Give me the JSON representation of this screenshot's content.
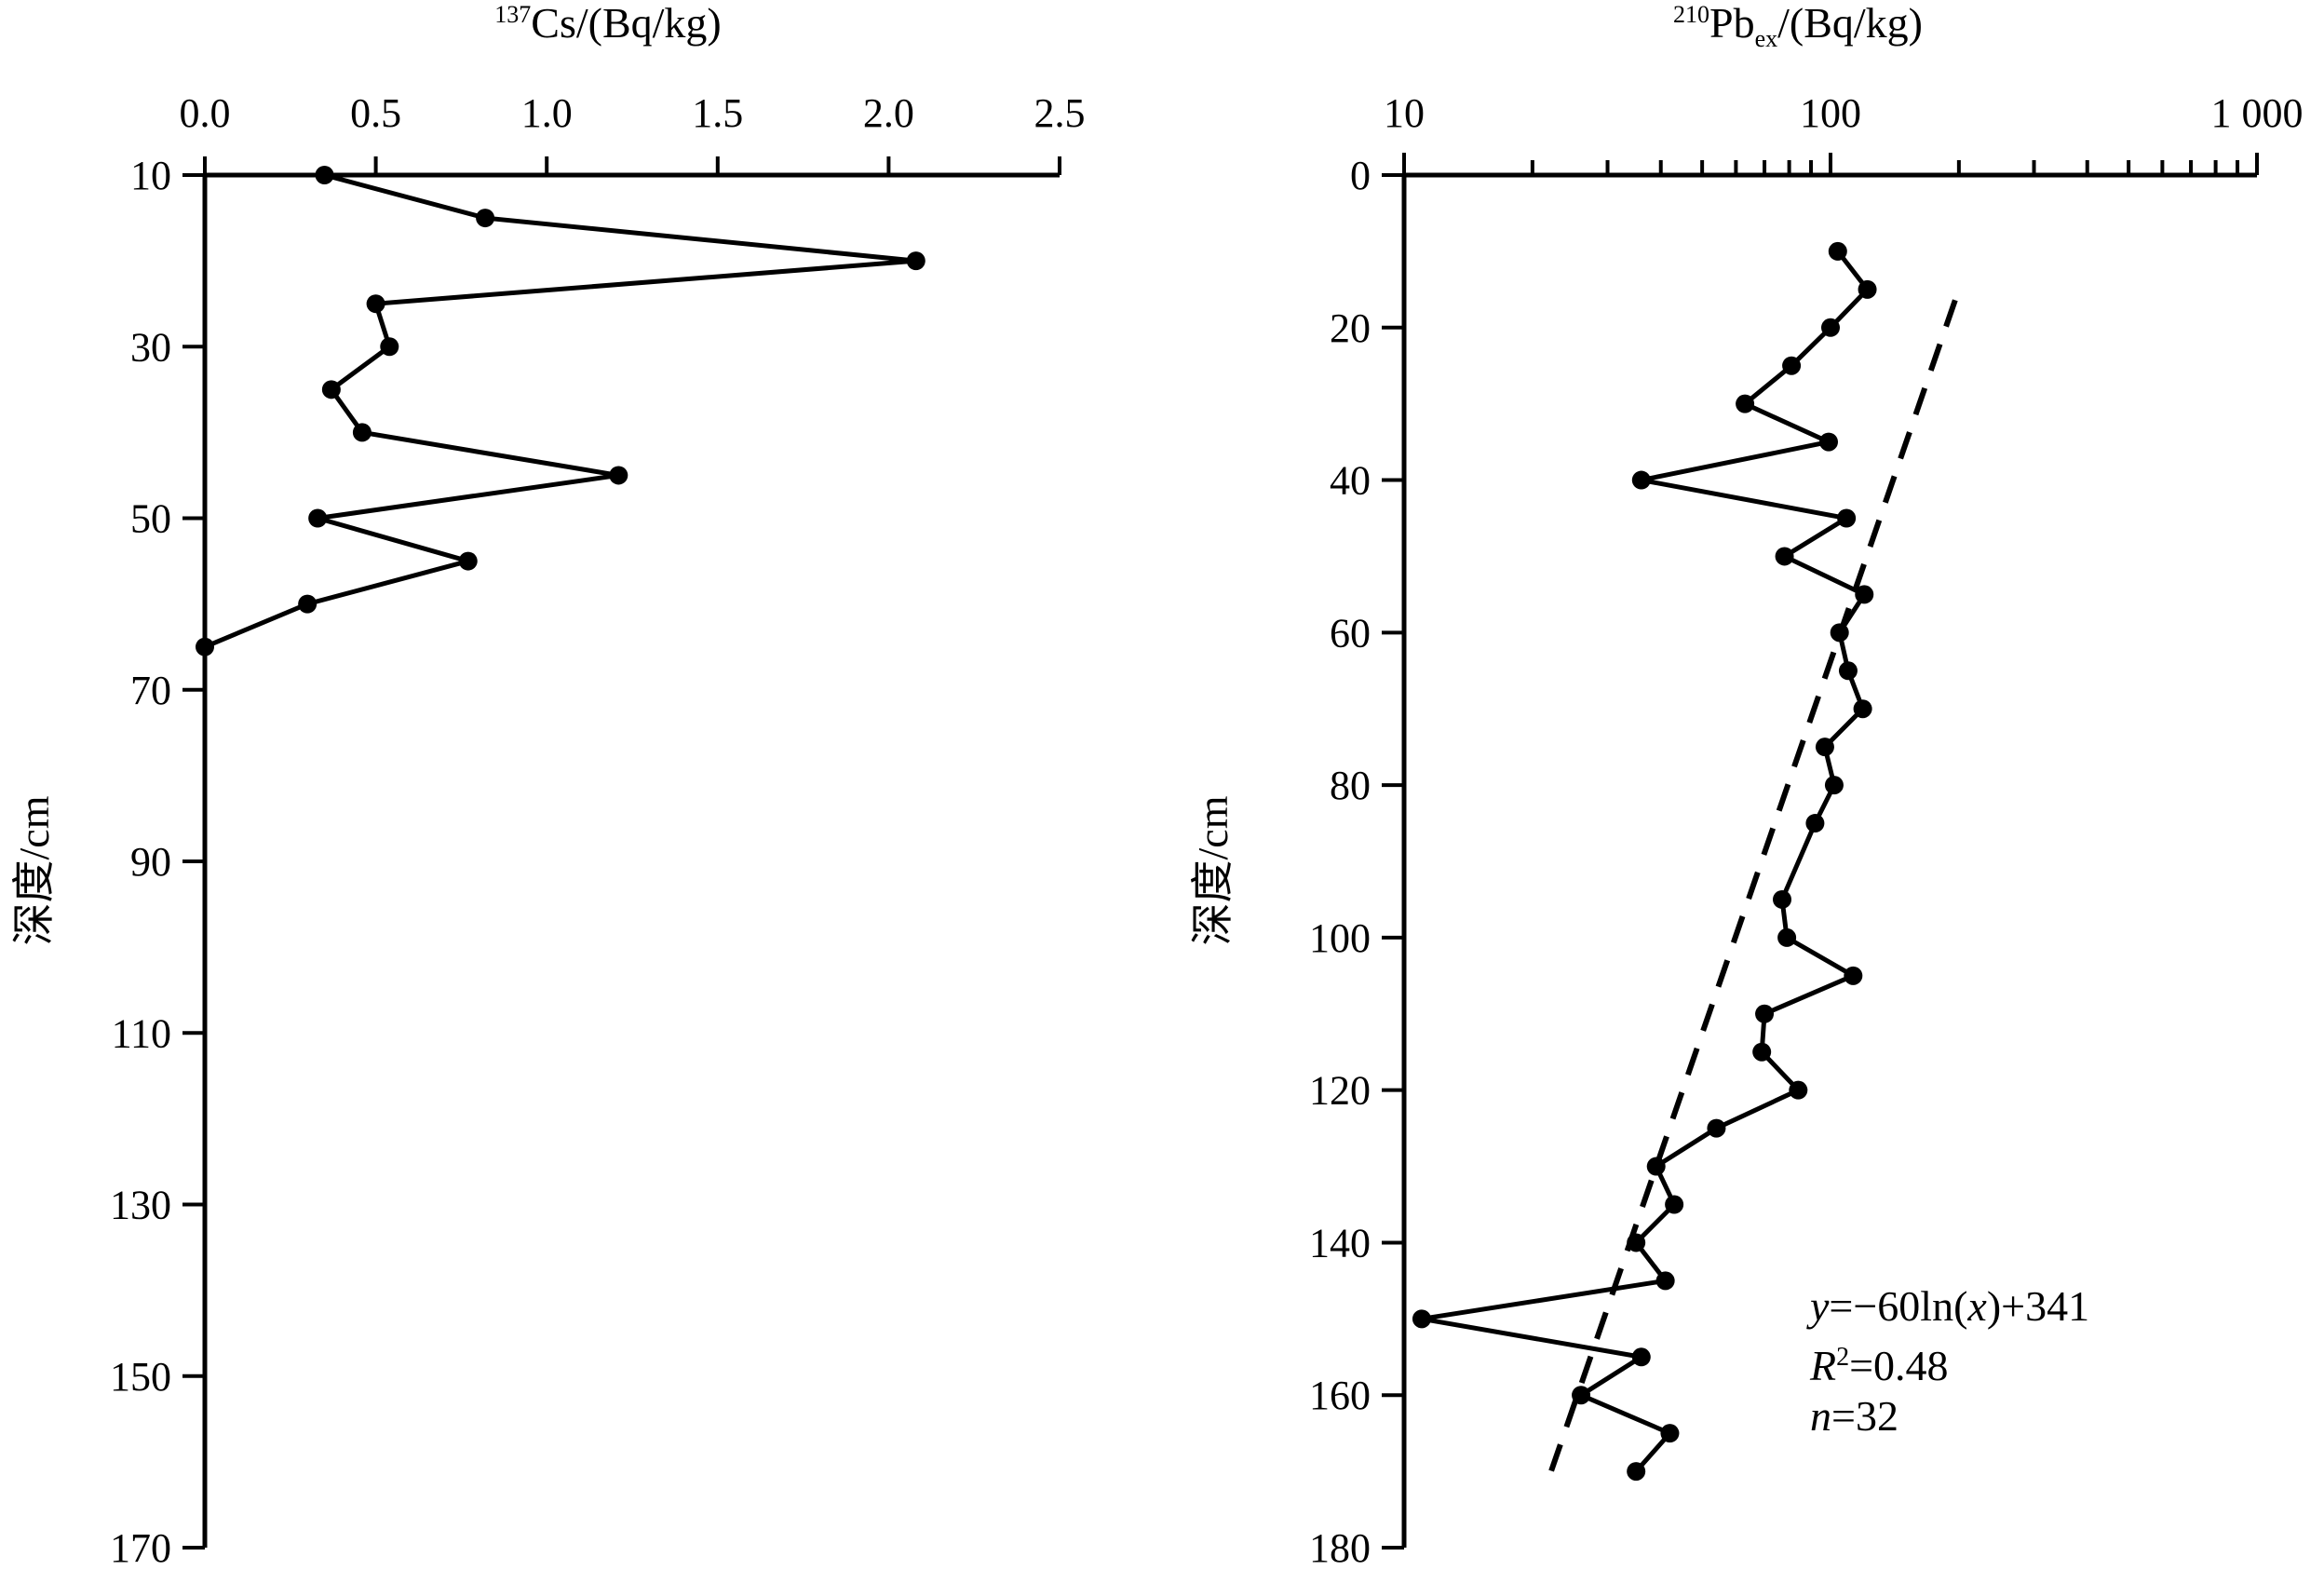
{
  "chart_data": [
    {
      "type": "line",
      "xlabel": {
        "sup": "137",
        "main": "Cs/(Bq/kg)"
      },
      "ylabel": "深度/cm",
      "x_axis_position": "top",
      "xlim": [
        0.0,
        2.5
      ],
      "ylim": [
        10,
        170
      ],
      "x_ticks": [
        0.0,
        0.5,
        1.0,
        1.5,
        2.0,
        2.5
      ],
      "x_tick_labels": [
        "0.0",
        "0.5",
        "1.0",
        "1.5",
        "2.0",
        "2.5"
      ],
      "y_ticks": [
        10,
        30,
        50,
        70,
        90,
        110,
        130,
        150,
        170
      ],
      "y_tick_labels": [
        "10",
        "30",
        "50",
        "70",
        "90",
        "110",
        "130",
        "150",
        "170"
      ],
      "grid": false,
      "series": [
        {
          "points": [
            {
              "x": 0.35,
              "y": 10
            },
            {
              "x": 0.82,
              "y": 15
            },
            {
              "x": 2.08,
              "y": 20
            },
            {
              "x": 0.5,
              "y": 25
            },
            {
              "x": 0.54,
              "y": 30
            },
            {
              "x": 0.37,
              "y": 35
            },
            {
              "x": 0.46,
              "y": 40
            },
            {
              "x": 1.21,
              "y": 45
            },
            {
              "x": 0.33,
              "y": 50
            },
            {
              "x": 0.77,
              "y": 55
            },
            {
              "x": 0.3,
              "y": 60
            },
            {
              "x": 0.0,
              "y": 65
            }
          ]
        }
      ]
    },
    {
      "type": "line",
      "xlabel": {
        "sup": "210",
        "main1": "Pb",
        "sub": "ex",
        "main2": "/(Bq/kg)"
      },
      "ylabel": "深度/cm",
      "x_axis_position": "top",
      "x_scale": "log",
      "xlim": [
        10,
        1000
      ],
      "ylim": [
        0,
        180
      ],
      "x_tick_labels": [
        "10",
        "100",
        "1 000"
      ],
      "y_ticks": [
        0,
        20,
        40,
        60,
        80,
        100,
        120,
        140,
        160,
        180
      ],
      "y_tick_labels": [
        "0",
        "20",
        "40",
        "60",
        "80",
        "100",
        "120",
        "140",
        "160",
        "180"
      ],
      "grid": false,
      "series": [
        {
          "points": [
            {
              "x": 104,
              "y": 10
            },
            {
              "x": 122,
              "y": 15
            },
            {
              "x": 100,
              "y": 20
            },
            {
              "x": 81,
              "y": 25
            },
            {
              "x": 63,
              "y": 30
            },
            {
              "x": 99,
              "y": 35
            },
            {
              "x": 36,
              "y": 40
            },
            {
              "x": 109,
              "y": 45
            },
            {
              "x": 78,
              "y": 50
            },
            {
              "x": 120,
              "y": 55
            },
            {
              "x": 105,
              "y": 60
            },
            {
              "x": 110,
              "y": 65
            },
            {
              "x": 119,
              "y": 70
            },
            {
              "x": 97,
              "y": 75
            },
            {
              "x": 102,
              "y": 80
            },
            {
              "x": 92,
              "y": 85
            },
            {
              "x": 77,
              "y": 95
            },
            {
              "x": 79,
              "y": 100
            },
            {
              "x": 113,
              "y": 105
            },
            {
              "x": 70,
              "y": 110
            },
            {
              "x": 69,
              "y": 115
            },
            {
              "x": 84,
              "y": 120
            },
            {
              "x": 54,
              "y": 125
            },
            {
              "x": 39,
              "y": 130
            },
            {
              "x": 43,
              "y": 135
            },
            {
              "x": 35,
              "y": 140
            },
            {
              "x": 41,
              "y": 145
            },
            {
              "x": 11,
              "y": 150
            },
            {
              "x": 36,
              "y": 155
            },
            {
              "x": 26,
              "y": 160
            },
            {
              "x": 42,
              "y": 165
            },
            {
              "x": 35,
              "y": 170
            }
          ]
        }
      ],
      "fit": {
        "style": "dashed",
        "equation": "y=−60ln(x)+341",
        "points": [
          {
            "x": 196,
            "y": 16.4
          },
          {
            "x": 21.5,
            "y": 172
          }
        ]
      },
      "annotation": {
        "line1": {
          "var": "y",
          "text": "=−60ln(",
          "inner": "x",
          "tail": ")+341"
        },
        "line2": {
          "var": "R",
          "sup": "2",
          "text": "=0.48"
        },
        "line3": {
          "var": "n",
          "text": "=32"
        }
      }
    }
  ]
}
